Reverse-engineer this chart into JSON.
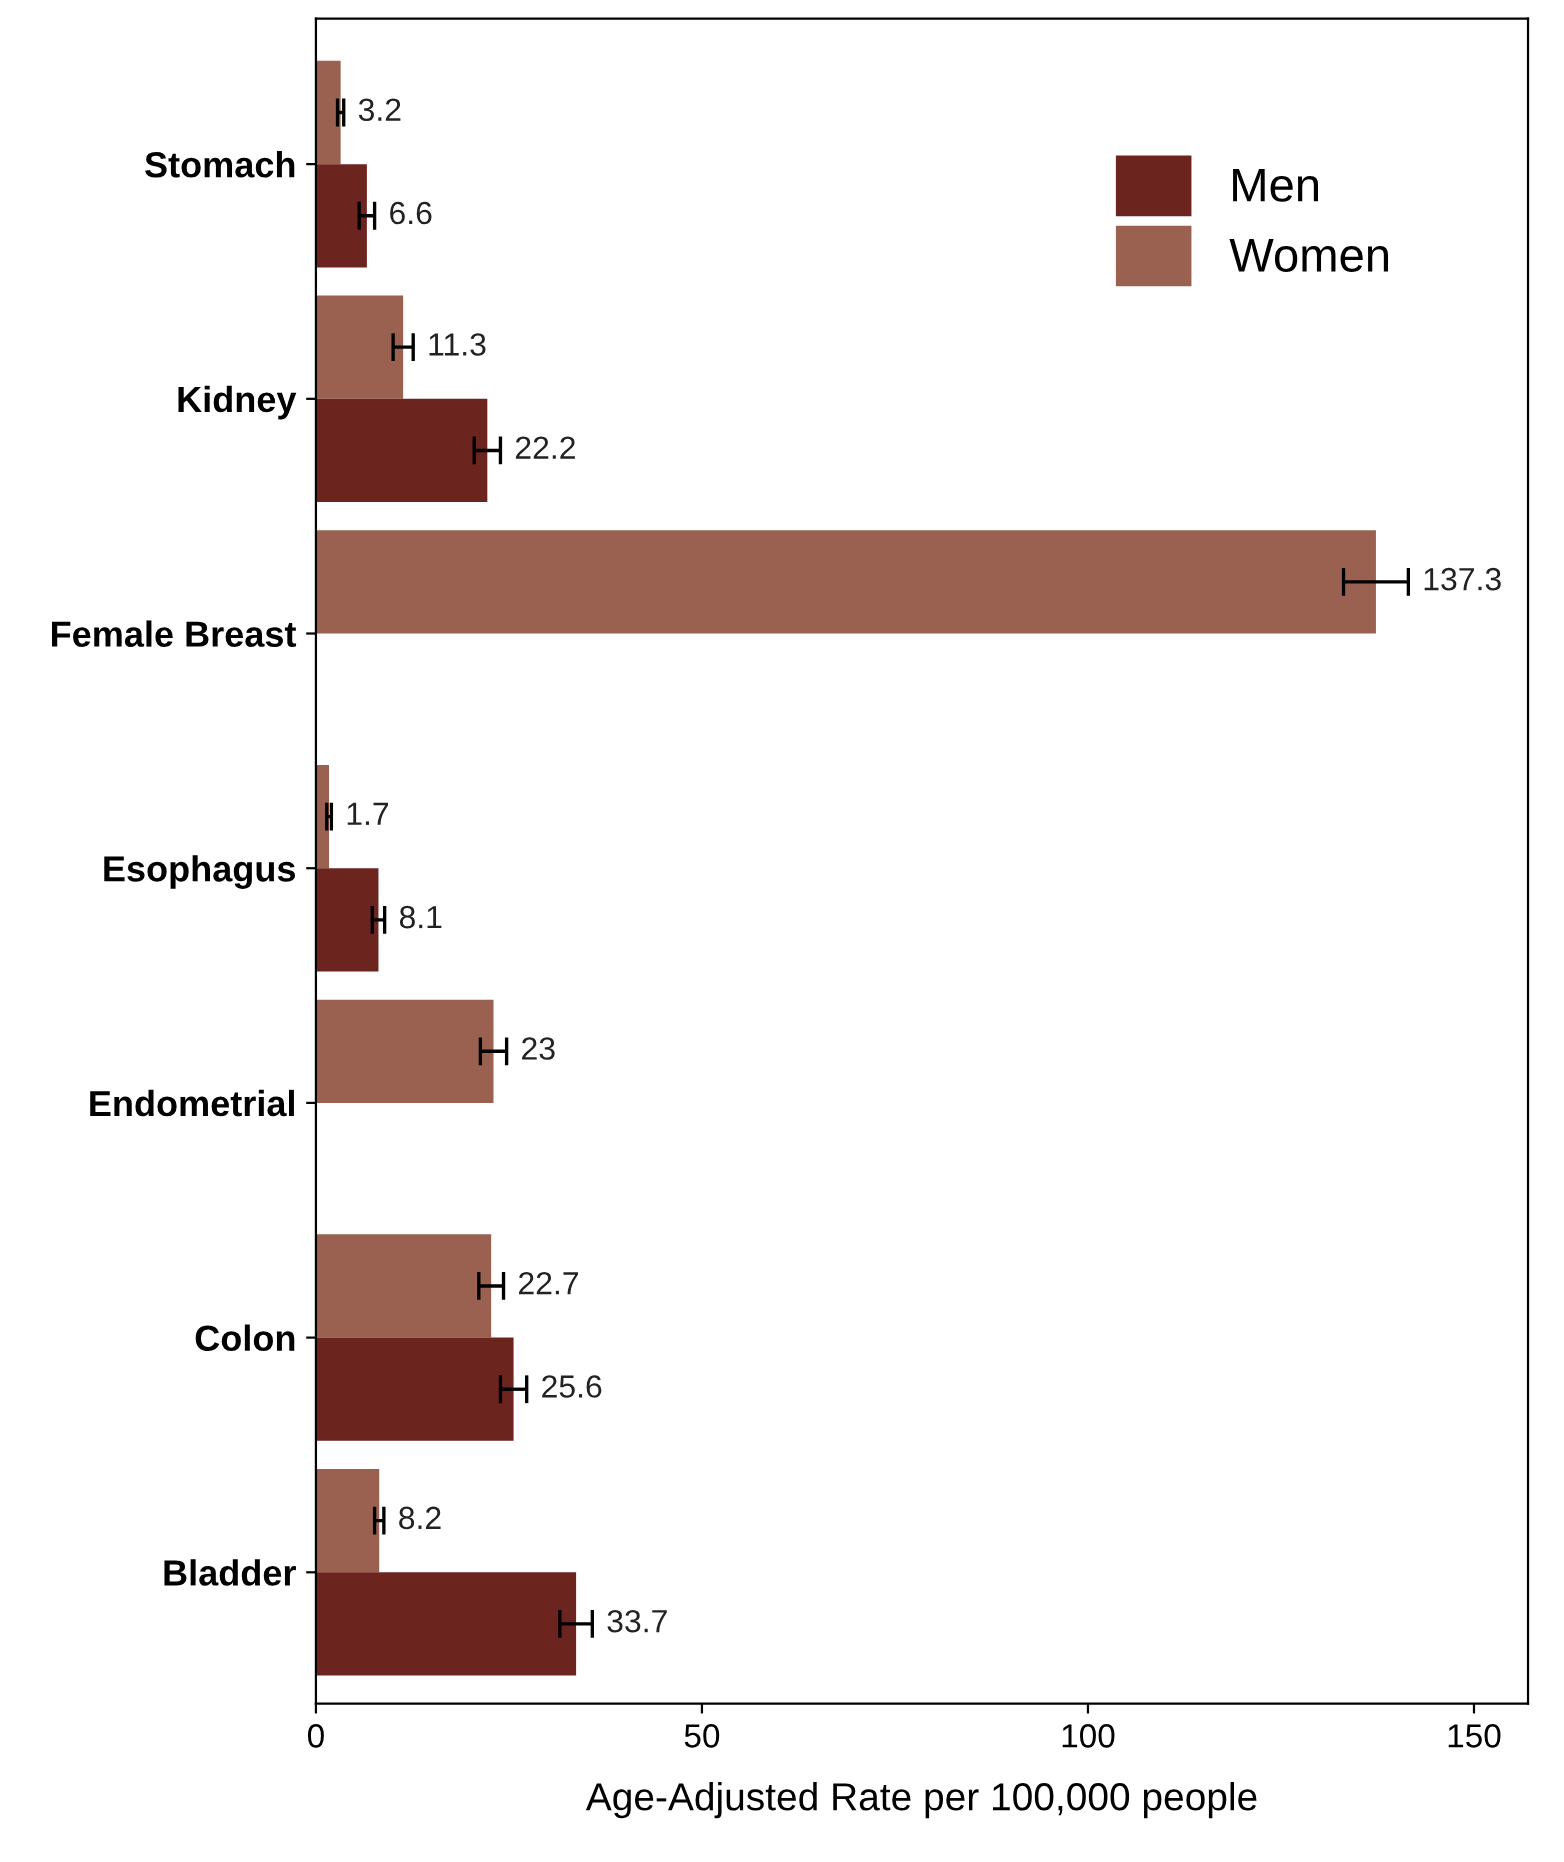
{
  "chart_data": {
    "type": "bar",
    "orientation": "horizontal",
    "xlabel": "Age-Adjusted Rate per 100,000 people",
    "categories": [
      "Stomach",
      "Kidney",
      "Female Breast",
      "Esophagus",
      "Endometrial",
      "Colon",
      "Bladder"
    ],
    "series": [
      {
        "name": "Women",
        "color": "#9a6150",
        "values": [
          3.2,
          11.3,
          137.3,
          1.7,
          23,
          22.7,
          8.2
        ],
        "errors": [
          0.4,
          1.3,
          4.2,
          0.3,
          1.7,
          1.6,
          0.6
        ]
      },
      {
        "name": "Men",
        "color": "#6b241e",
        "values": [
          6.6,
          22.2,
          null,
          8.1,
          null,
          25.6,
          33.7
        ],
        "errors": [
          1.0,
          1.7,
          null,
          0.8,
          null,
          1.7,
          2.1
        ]
      }
    ],
    "xlim": [
      0,
      157
    ],
    "xticks": [
      0,
      50,
      100,
      150
    ],
    "data_labels": true,
    "legend": "top right",
    "grid": false
  }
}
